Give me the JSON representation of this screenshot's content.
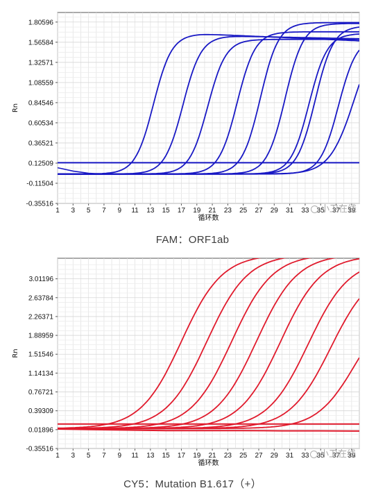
{
  "chart_data": [
    {
      "type": "line",
      "title": "",
      "caption": "FAM：ORF1ab",
      "xlabel": "循环数",
      "ylabel": "Rn",
      "xlim": [
        1,
        40
      ],
      "ylim": [
        -0.35516,
        1.92
      ],
      "x_ticks": [
        1,
        3,
        5,
        7,
        9,
        11,
        13,
        15,
        17,
        19,
        21,
        23,
        25,
        27,
        29,
        31,
        33,
        35,
        37,
        39
      ],
      "y_ticks": [
        -0.35516,
        -0.11504,
        0.12509,
        0.36521,
        0.60534,
        0.84546,
        1.08559,
        1.32571,
        1.56584,
        1.80596
      ],
      "y_tick_labels": [
        "-0.35516",
        "-0.11504",
        "0.12509",
        "0.36521",
        "0.60534",
        "0.84546",
        "1.08559",
        "1.32571",
        "1.56584",
        "1.80596"
      ],
      "grid": true,
      "line_color": "#1818c4",
      "threshold": 0.13,
      "series": [
        {
          "baseline": -0.005,
          "plateau": 1.665,
          "midpoint": 13.4,
          "slope": 0.85,
          "decline": 0.004
        },
        {
          "baseline": -0.005,
          "plateau": 1.64,
          "midpoint": 17.2,
          "slope": 0.85,
          "decline": 0.002
        },
        {
          "baseline": -0.005,
          "plateau": 1.6,
          "midpoint": 20.4,
          "slope": 0.85,
          "decline": 0.0
        },
        {
          "baseline": -0.005,
          "plateau": 1.69,
          "midpoint": 24.2,
          "slope": 0.85,
          "decline": 0.0
        },
        {
          "baseline": -0.005,
          "plateau": 1.8,
          "midpoint": 27.2,
          "slope": 0.85,
          "decline": 0.0
        },
        {
          "baseline": -0.005,
          "plateau": 1.79,
          "midpoint": 30.4,
          "slope": 0.85,
          "decline": 0.0
        },
        {
          "baseline": -0.005,
          "plateau": 1.76,
          "midpoint": 34.3,
          "slope": 0.85,
          "decline": 0.0
        },
        {
          "baseline": -0.005,
          "plateau": 1.62,
          "midpoint": 37.3,
          "slope": 0.85,
          "decline": 0.0
        },
        {
          "baseline": -0.005,
          "plateau": 1.8,
          "midpoint": 39.4,
          "slope": 0.62,
          "decline": 0.0
        },
        {
          "baseline": -0.005,
          "plateau": 1.67,
          "midpoint": 33.5,
          "slope": 0.85,
          "decline": 0.0
        }
      ],
      "drift_series": {
        "x": [
          1,
          3,
          5,
          7,
          9
        ],
        "y": [
          0.07,
          0.03,
          0.005,
          -0.005,
          -0.005
        ]
      }
    },
    {
      "type": "line",
      "title": "",
      "caption": "CY5：Mutation B1.617（+）",
      "xlabel": "循环数",
      "ylabel": "Rn",
      "xlim": [
        1,
        40
      ],
      "ylim": [
        -0.35516,
        3.42
      ],
      "x_ticks": [
        1,
        3,
        5,
        7,
        9,
        11,
        13,
        15,
        17,
        19,
        21,
        23,
        25,
        27,
        29,
        31,
        33,
        35,
        37,
        39
      ],
      "y_ticks": [
        -0.35516,
        0.01896,
        0.39309,
        0.76721,
        1.14134,
        1.51546,
        1.88959,
        2.26371,
        2.63784,
        3.01196
      ],
      "y_tick_labels": [
        "-0.35516",
        "0.01896",
        "0.39309",
        "0.76721",
        "1.14134",
        "1.51546",
        "1.88959",
        "2.26371",
        "2.63784",
        "3.01196"
      ],
      "grid": true,
      "line_color": "#e01a2c",
      "threshold": 0.13,
      "series": [
        {
          "baseline": 0.04,
          "plateau": 3.5,
          "midpoint": 17.0,
          "slope": 0.38
        },
        {
          "baseline": 0.04,
          "plateau": 3.5,
          "midpoint": 20.3,
          "slope": 0.38
        },
        {
          "baseline": 0.04,
          "plateau": 3.5,
          "midpoint": 23.5,
          "slope": 0.38
        },
        {
          "baseline": 0.04,
          "plateau": 3.5,
          "midpoint": 26.7,
          "slope": 0.38
        },
        {
          "baseline": 0.04,
          "plateau": 3.48,
          "midpoint": 29.8,
          "slope": 0.38
        },
        {
          "baseline": 0.04,
          "plateau": 3.4,
          "midpoint": 33.4,
          "slope": 0.38
        },
        {
          "baseline": 0.04,
          "plateau": 3.25,
          "midpoint": 36.3,
          "slope": 0.38
        },
        {
          "baseline": 0.04,
          "plateau": 2.6,
          "midpoint": 39.5,
          "slope": 0.4
        }
      ],
      "flat_series": [
        {
          "x": [
            1,
            5,
            10,
            15,
            20,
            25,
            30,
            35,
            40
          ],
          "y": [
            0.03,
            0.02,
            0.01,
            0.0,
            0.0,
            0.0,
            -0.005,
            -0.005,
            -0.01
          ]
        }
      ]
    }
  ],
  "watermark": "小卫在线"
}
